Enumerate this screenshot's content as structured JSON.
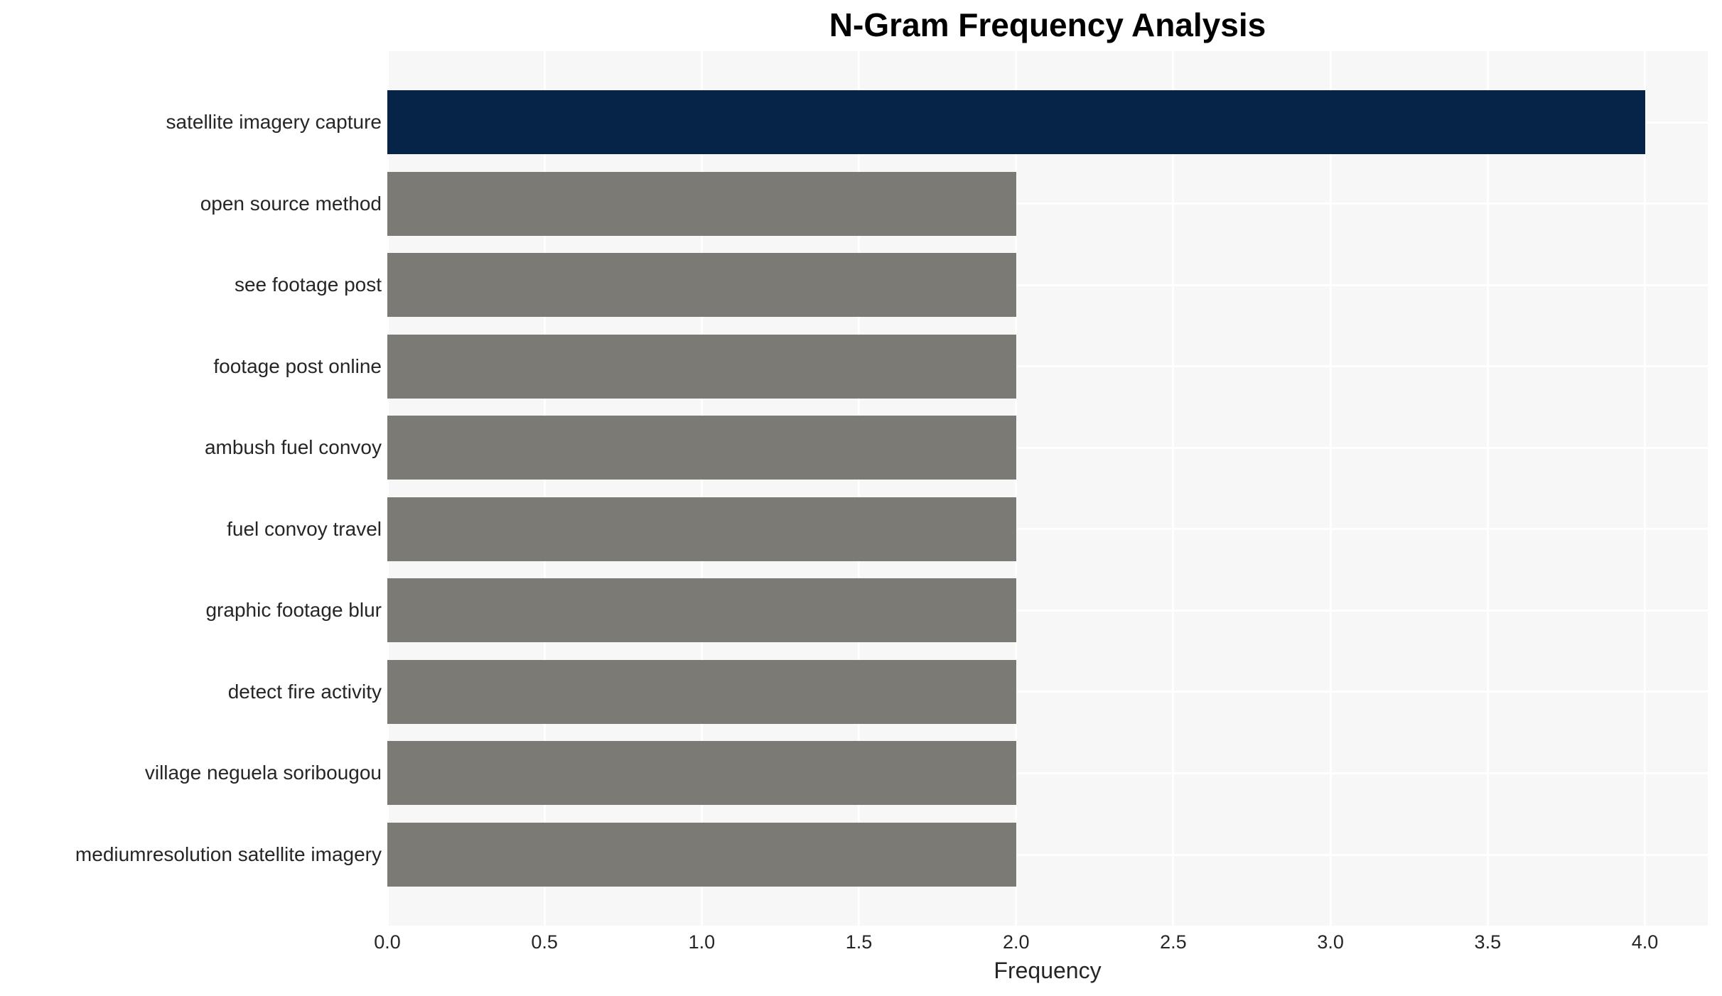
{
  "page": {
    "background_color": "#ffffff"
  },
  "chart_data": {
    "type": "bar",
    "orientation": "horizontal",
    "title": "N-Gram Frequency Analysis",
    "xlabel": "Frequency",
    "ylabel": "",
    "categories": [
      "satellite imagery capture",
      "open source method",
      "see footage post",
      "footage post online",
      "ambush fuel convoy",
      "fuel convoy travel",
      "graphic footage blur",
      "detect fire activity",
      "village neguela soribougou",
      "mediumresolution satellite imagery"
    ],
    "values": [
      4,
      2,
      2,
      2,
      2,
      2,
      2,
      2,
      2,
      2
    ],
    "bar_colors": [
      "#062348",
      "#7c7a75",
      "#7c7a75",
      "#7c7a75",
      "#7c7a75",
      "#7c7a75",
      "#7c7a75",
      "#7c7a75",
      "#7c7a75",
      "#7c7a75"
    ],
    "highlight_color": "#062348",
    "default_color": "#7c7a75",
    "xticks": [
      "0.0",
      "0.5",
      "1.0",
      "1.5",
      "2.0",
      "2.5",
      "3.0",
      "3.5",
      "4.0"
    ],
    "xlim": [
      0,
      4.2
    ],
    "grid": true,
    "legend": false,
    "plot_background": "#f7f7f7",
    "grid_color": "#ffffff",
    "text_color": "#262626",
    "title_color": "#000000"
  }
}
